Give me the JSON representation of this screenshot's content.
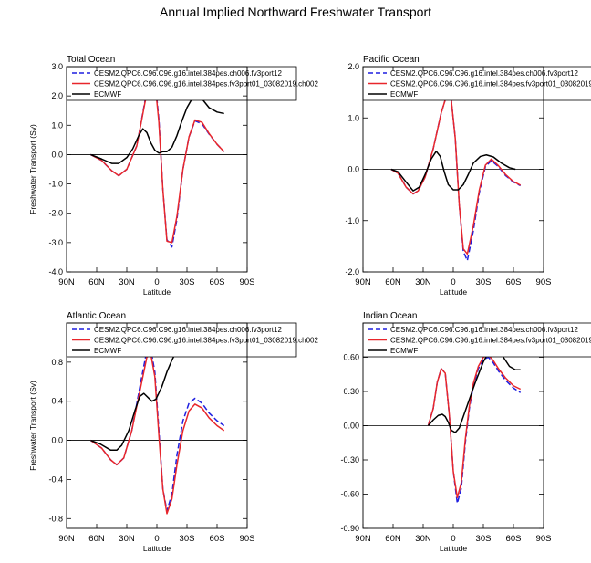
{
  "figure": {
    "title": "Annual Implied Northward Freshwater Transport"
  },
  "legend_entries": [
    {
      "label": "CESM2.QPC6.C96.C96.g16.intel.384pes.ch006.fv3port12",
      "color": "#1f1fe0",
      "dash": true
    },
    {
      "label": "CESM2.QPC6.C96.C96.g16.intel.384pes.fv3port01_03082019.ch002",
      "color": "#e8262b",
      "dash": false
    },
    {
      "label": "ECMWF",
      "color": "#000000",
      "dash": false
    }
  ],
  "chart_data": [
    {
      "type": "line",
      "title": "Total Ocean",
      "xlabel": "Latitude",
      "ylabel": "Freshwater Transport (Sv)",
      "xlim": [
        90,
        -90
      ],
      "ylim": [
        -4.0,
        3.0
      ],
      "x_ticks": [
        90,
        60,
        30,
        0,
        -30,
        -60,
        -90
      ],
      "x_tick_labels": [
        "90N",
        "60N",
        "30N",
        "0",
        "30S",
        "60S",
        "90S"
      ],
      "y_ticks": [
        -4.0,
        -3.0,
        -2.0,
        -1.0,
        0.0,
        1.0,
        2.0,
        3.0
      ],
      "y_tick_labels": [
        "-4.0",
        "-3.0",
        "-2.0",
        "-1.0",
        "0.0",
        "1.0",
        "2.0",
        "3.0"
      ],
      "zero_line": true,
      "series": [
        {
          "name": "CESM2.QPC6.C96.C96.g16.intel.384pes.ch006.fv3port12",
          "x": [
            66,
            55,
            45,
            38,
            30,
            20,
            12,
            6,
            2,
            -2,
            -6,
            -10,
            -15,
            -20,
            -26,
            -32,
            -38,
            -45,
            -52,
            -60,
            -67
          ],
          "y": [
            0.0,
            -0.2,
            -0.55,
            -0.72,
            -0.5,
            0.3,
            1.8,
            2.8,
            2.6,
            1.2,
            -1.2,
            -2.9,
            -3.15,
            -2.2,
            -0.5,
            0.6,
            1.15,
            1.05,
            0.7,
            0.35,
            0.1
          ]
        },
        {
          "name": "CESM2.QPC6.C96.C96.g16.intel.384pes.fv3port01_03082019.ch002",
          "x": [
            66,
            55,
            45,
            38,
            30,
            20,
            12,
            6,
            2,
            -2,
            -6,
            -10,
            -15,
            -20,
            -26,
            -32,
            -38,
            -45,
            -52,
            -60,
            -67
          ],
          "y": [
            0.0,
            -0.2,
            -0.55,
            -0.72,
            -0.5,
            0.3,
            1.75,
            2.7,
            2.5,
            1.1,
            -1.2,
            -2.95,
            -3.0,
            -2.1,
            -0.5,
            0.6,
            1.18,
            1.1,
            0.72,
            0.35,
            0.1
          ]
        },
        {
          "name": "ECMWF",
          "x": [
            66,
            55,
            45,
            38,
            30,
            24,
            18,
            14,
            10,
            6,
            2,
            -2,
            -6,
            -10,
            -15,
            -20,
            -25,
            -30,
            -35,
            -40,
            -45,
            -52,
            -60,
            -67
          ],
          "y": [
            0.0,
            -0.15,
            -0.3,
            -0.3,
            -0.1,
            0.2,
            0.65,
            0.88,
            0.75,
            0.4,
            0.15,
            0.05,
            0.1,
            0.1,
            0.25,
            0.65,
            1.15,
            1.6,
            1.9,
            2.0,
            1.9,
            1.6,
            1.45,
            1.4
          ]
        }
      ]
    },
    {
      "type": "line",
      "title": "Pacific Ocean",
      "xlabel": "Latitude",
      "ylabel": "",
      "xlim": [
        90,
        -90
      ],
      "ylim": [
        -2.0,
        2.0
      ],
      "x_ticks": [
        90,
        60,
        30,
        0,
        -30,
        -60,
        -90
      ],
      "x_tick_labels": [
        "90N",
        "60N",
        "30N",
        "0",
        "30S",
        "60S",
        "90S"
      ],
      "y_ticks": [
        -2.0,
        -1.0,
        0.0,
        1.0,
        2.0
      ],
      "y_tick_labels": [
        "-2.0",
        "-1.0",
        "0.0",
        "1.0",
        "2.0"
      ],
      "zero_line": true,
      "series": [
        {
          "name": "CESM2.QPC6.C96.C96.g16.intel.384pes.ch006.fv3port12",
          "x": [
            62,
            55,
            47,
            40,
            35,
            28,
            20,
            12,
            6,
            2,
            -2,
            -6,
            -10,
            -14,
            -20,
            -26,
            -32,
            -38,
            -45,
            -52,
            -60,
            -67
          ],
          "y": [
            0.0,
            -0.08,
            -0.35,
            -0.48,
            -0.42,
            -0.15,
            0.4,
            1.1,
            1.48,
            1.35,
            0.6,
            -0.7,
            -1.6,
            -1.78,
            -1.2,
            -0.45,
            0.05,
            0.17,
            0.05,
            -0.12,
            -0.25,
            -0.32
          ]
        },
        {
          "name": "CESM2.QPC6.C96.C96.g16.intel.384pes.fv3port01_03082019.ch002",
          "x": [
            62,
            55,
            47,
            40,
            35,
            28,
            20,
            12,
            6,
            2,
            -2,
            -6,
            -10,
            -14,
            -20,
            -26,
            -32,
            -38,
            -45,
            -52,
            -60,
            -67
          ],
          "y": [
            0.0,
            -0.08,
            -0.35,
            -0.48,
            -0.42,
            -0.15,
            0.4,
            1.1,
            1.48,
            1.35,
            0.6,
            -0.7,
            -1.55,
            -1.65,
            -1.1,
            -0.4,
            0.08,
            0.2,
            0.07,
            -0.1,
            -0.24,
            -0.31
          ]
        },
        {
          "name": "ECMWF",
          "x": [
            62,
            55,
            47,
            40,
            34,
            28,
            22,
            17,
            13,
            9,
            5,
            0,
            -5,
            -10,
            -15,
            -20,
            -27,
            -33,
            -40,
            -48,
            -56,
            -62
          ],
          "y": [
            0.0,
            -0.05,
            -0.25,
            -0.42,
            -0.35,
            -0.1,
            0.2,
            0.35,
            0.25,
            -0.05,
            -0.3,
            -0.4,
            -0.4,
            -0.3,
            -0.1,
            0.12,
            0.25,
            0.28,
            0.24,
            0.12,
            0.03,
            0.0
          ]
        }
      ]
    },
    {
      "type": "line",
      "title": "Atlantic Ocean",
      "xlabel": "Latitude",
      "ylabel": "Freshwater Transport (Sv)",
      "xlim": [
        90,
        -90
      ],
      "ylim": [
        -0.9,
        1.2
      ],
      "x_ticks": [
        90,
        60,
        30,
        0,
        -30,
        -60,
        -90
      ],
      "x_tick_labels": [
        "90N",
        "60N",
        "30N",
        "0",
        "30S",
        "60S",
        "90S"
      ],
      "y_ticks": [
        -0.8,
        -0.4,
        0.0,
        0.4,
        0.8
      ],
      "y_tick_labels": [
        "-0.8",
        "-0.4",
        "0.0",
        "0.4",
        "0.8"
      ],
      "zero_line": true,
      "series": [
        {
          "name": "CESM2.QPC6.C96.C96.g16.intel.384pes.ch006.fv3port12",
          "x": [
            66,
            55,
            46,
            40,
            33,
            25,
            16,
            10,
            6,
            2,
            -2,
            -6,
            -10,
            -15,
            -20,
            -26,
            -32,
            -38,
            -45,
            -52,
            -60,
            -67
          ],
          "y": [
            0.0,
            -0.08,
            -0.2,
            -0.25,
            -0.18,
            0.1,
            0.6,
            0.92,
            0.93,
            0.7,
            0.1,
            -0.5,
            -0.72,
            -0.55,
            -0.15,
            0.2,
            0.38,
            0.43,
            0.38,
            0.28,
            0.2,
            0.15
          ]
        },
        {
          "name": "CESM2.QPC6.C96.C96.g16.intel.384pes.fv3port01_03082019.ch002",
          "x": [
            66,
            55,
            46,
            40,
            33,
            25,
            16,
            10,
            6,
            2,
            -2,
            -6,
            -10,
            -15,
            -20,
            -26,
            -32,
            -38,
            -45,
            -52,
            -60,
            -67
          ],
          "y": [
            0.0,
            -0.08,
            -0.2,
            -0.25,
            -0.18,
            0.1,
            0.55,
            0.85,
            0.88,
            0.65,
            0.05,
            -0.5,
            -0.75,
            -0.6,
            -0.25,
            0.1,
            0.3,
            0.37,
            0.33,
            0.23,
            0.15,
            0.1
          ]
        },
        {
          "name": "ECMWF",
          "x": [
            66,
            56,
            46,
            40,
            35,
            28,
            22,
            17,
            13,
            9,
            5,
            1,
            -5,
            -10,
            -15,
            -20,
            -26,
            -32,
            -38,
            -44,
            -50,
            -56,
            -62,
            -67
          ],
          "y": [
            0.0,
            -0.04,
            -0.1,
            -0.1,
            -0.05,
            0.1,
            0.3,
            0.45,
            0.48,
            0.44,
            0.4,
            0.42,
            0.55,
            0.7,
            0.82,
            0.92,
            0.99,
            1.02,
            1.03,
            1.02,
            0.98,
            0.92,
            0.9,
            0.9
          ]
        }
      ]
    },
    {
      "type": "line",
      "title": "Indian Ocean",
      "xlabel": "Latitude",
      "ylabel": "",
      "xlim": [
        90,
        -90
      ],
      "ylim": [
        -0.9,
        0.9
      ],
      "x_ticks": [
        90,
        60,
        30,
        0,
        -30,
        -60,
        -90
      ],
      "x_tick_labels": [
        "90N",
        "60N",
        "30N",
        "0",
        "30S",
        "60S",
        "90S"
      ],
      "y_ticks": [
        -0.9,
        -0.6,
        -0.3,
        0.0,
        0.3,
        0.6
      ],
      "y_tick_labels": [
        "-0.90",
        "-0.60",
        "-0.30",
        "0.00",
        "0.30",
        "0.60"
      ],
      "zero_line": true,
      "series": [
        {
          "name": "CESM2.QPC6.C96.C96.g16.intel.384pes.ch006.fv3port12",
          "x": [
            25,
            20,
            16,
            12,
            8,
            4,
            0,
            -4,
            -8,
            -12,
            -16,
            -20,
            -25,
            -30,
            -35,
            -40,
            -45,
            -52,
            -60,
            -67
          ],
          "y": [
            0.0,
            0.15,
            0.38,
            0.5,
            0.46,
            0.1,
            -0.4,
            -0.68,
            -0.55,
            -0.15,
            0.15,
            0.35,
            0.5,
            0.58,
            0.6,
            0.55,
            0.48,
            0.4,
            0.33,
            0.29
          ]
        },
        {
          "name": "CESM2.QPC6.C96.C96.g16.intel.384pes.fv3port01_03082019.ch002",
          "x": [
            25,
            20,
            16,
            12,
            8,
            4,
            0,
            -4,
            -8,
            -12,
            -16,
            -20,
            -25,
            -30,
            -35,
            -40,
            -45,
            -52,
            -60,
            -67
          ],
          "y": [
            0.0,
            0.15,
            0.38,
            0.5,
            0.46,
            0.1,
            -0.4,
            -0.63,
            -0.5,
            -0.12,
            0.17,
            0.37,
            0.52,
            0.6,
            0.62,
            0.57,
            0.5,
            0.42,
            0.35,
            0.32
          ]
        },
        {
          "name": "ECMWF",
          "x": [
            25,
            20,
            15,
            11,
            8,
            5,
            2,
            -2,
            -6,
            -10,
            -14,
            -18,
            -22,
            -26,
            -30,
            -35,
            -40,
            -45,
            -50,
            -56,
            -62,
            -67
          ],
          "y": [
            0.0,
            0.05,
            0.09,
            0.1,
            0.08,
            0.03,
            -0.04,
            -0.06,
            -0.02,
            0.08,
            0.18,
            0.28,
            0.38,
            0.47,
            0.56,
            0.64,
            0.7,
            0.68,
            0.6,
            0.52,
            0.49,
            0.49
          ]
        }
      ]
    }
  ]
}
